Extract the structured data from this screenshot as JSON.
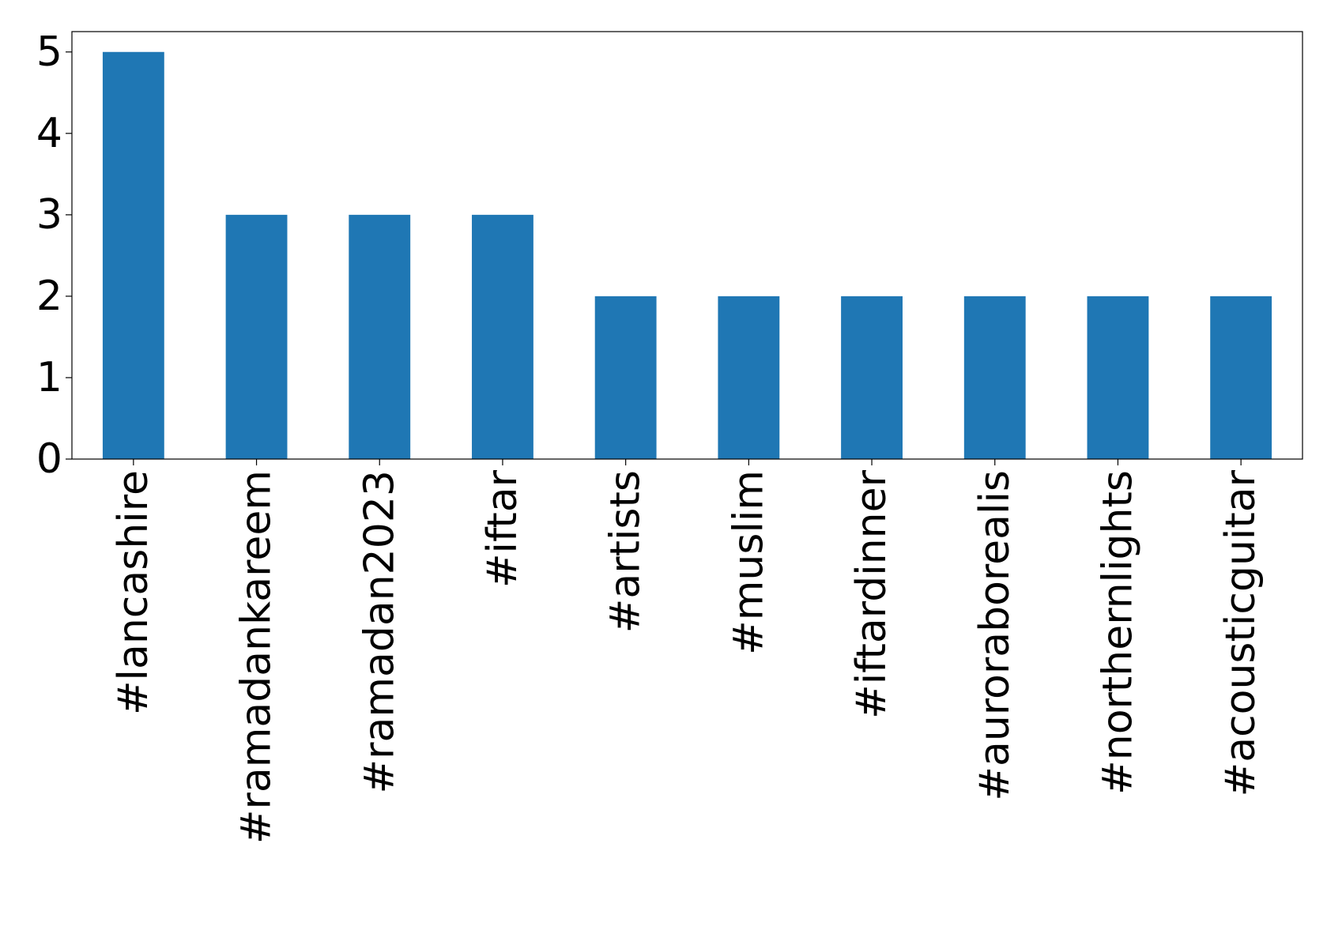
{
  "chart_data": {
    "type": "bar",
    "categories": [
      "#lancashire",
      "#ramadankareem",
      "#ramadan2023",
      "#iftar",
      "#artists",
      "#muslim",
      "#iftardinner",
      "#auroraborealis",
      "#northernlights",
      "#acousticguitar"
    ],
    "values": [
      5,
      3,
      3,
      3,
      2,
      2,
      2,
      2,
      2,
      2
    ],
    "color": "#1f77b4",
    "ylim": [
      0,
      5.25
    ],
    "yticks": [
      0,
      1,
      2,
      3,
      4,
      5
    ],
    "grid": false
  }
}
